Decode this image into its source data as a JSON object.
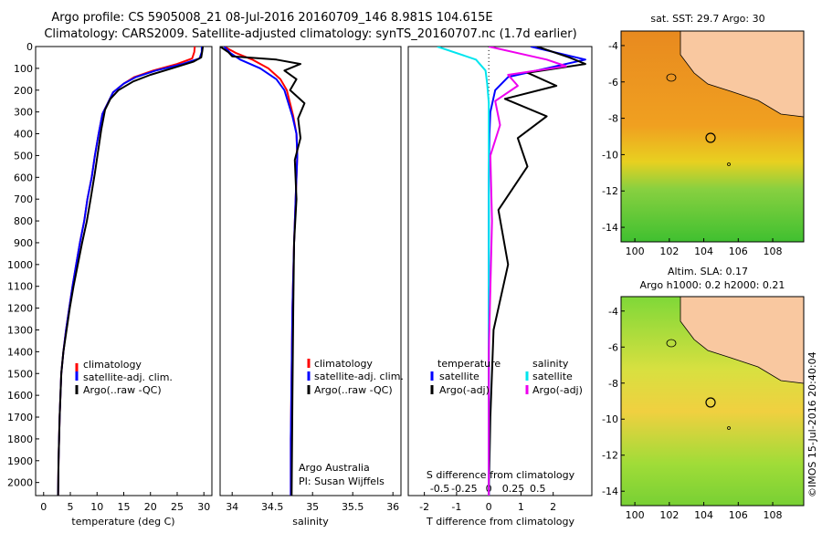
{
  "header": {
    "line1": "Argo profile: CS 5905008_21 08-Jul-2016 20160709_146 8.981S 104.615E",
    "line2": "Climatology: CARS2009. Satellite-adjusted climatology: synTS_20160707.nc (1.7d earlier)"
  },
  "credit": "©IMOS 15-Jul-2016 20:40:04",
  "colors": {
    "climatology": "#ff0000",
    "satellite": "#0000ff",
    "argo": "#000000",
    "cyan": "#00e5ee",
    "magenta": "#ee00ee",
    "land": "#f9c8a0"
  },
  "chart_data": [
    {
      "type": "line",
      "id": "temperature",
      "xlabel": "temperature (deg C)",
      "ylabel": "",
      "xlim": [
        -1.5,
        31.5
      ],
      "ylim": [
        0,
        2060
      ],
      "xticks": [
        0,
        5,
        10,
        15,
        20,
        25,
        30
      ],
      "yticks": [
        0,
        100,
        200,
        300,
        400,
        500,
        600,
        700,
        800,
        900,
        1000,
        1100,
        1200,
        1300,
        1400,
        1500,
        1600,
        1700,
        1800,
        1900,
        2000
      ],
      "legend": [
        "climatology",
        "satellite-adj. clim.",
        "Argo(..raw -QC)"
      ],
      "series": [
        {
          "name": "climatology",
          "color": "#ff0000",
          "x": [
            28.3,
            28.2,
            27.8,
            25,
            20.5,
            17,
            15,
            13,
            12,
            11,
            10.3,
            9.6,
            9,
            8.2,
            7.6,
            6.8,
            6.1,
            5.4,
            4.8,
            4.2,
            3.7,
            3.3,
            3.0,
            2.8,
            2.7
          ],
          "y": [
            0,
            25,
            55,
            80,
            110,
            140,
            170,
            210,
            260,
            310,
            400,
            500,
            600,
            700,
            800,
            900,
            1000,
            1100,
            1200,
            1300,
            1400,
            1500,
            1700,
            1900,
            2060
          ]
        },
        {
          "name": "satellite-adj. clim.",
          "color": "#0000ff",
          "x": [
            29.6,
            29.6,
            29.2,
            26,
            21,
            17.3,
            15,
            13,
            12,
            11,
            10.3,
            9.6,
            9,
            8.2,
            7.6,
            6.8,
            6.1,
            5.4,
            4.8,
            4.2,
            3.7,
            3.3,
            3.0,
            2.8,
            2.7
          ],
          "y": [
            0,
            25,
            55,
            80,
            110,
            140,
            170,
            210,
            260,
            310,
            400,
            500,
            600,
            700,
            800,
            900,
            1000,
            1100,
            1200,
            1300,
            1400,
            1500,
            1700,
            1900,
            2060
          ]
        },
        {
          "name": "Argo(..raw -QC)",
          "color": "#000000",
          "x": [
            29.8,
            29.7,
            29.5,
            28,
            24,
            20,
            16.8,
            14,
            12.5,
            11.5,
            10.8,
            10.2,
            9.6,
            8.8,
            8.1,
            7.2,
            6.4,
            5.6,
            4.9,
            4.3,
            3.7,
            3.3,
            3.0,
            2.8,
            2.7
          ],
          "y": [
            0,
            20,
            50,
            70,
            100,
            130,
            160,
            200,
            240,
            290,
            380,
            480,
            580,
            700,
            800,
            900,
            1000,
            1100,
            1200,
            1300,
            1400,
            1500,
            1700,
            1900,
            2060
          ]
        }
      ]
    },
    {
      "type": "line",
      "id": "salinity",
      "xlabel": "salinity",
      "ylabel": "",
      "xlim": [
        33.85,
        36.1
      ],
      "ylim": [
        0,
        2060
      ],
      "xticks": [
        34,
        34.5,
        35,
        35.5,
        36
      ],
      "legend": [
        "climatology",
        "satellite-adj. clim.",
        "Argo(..raw -QC)"
      ],
      "annotations": [
        "Argo Australia",
        "PI: Susan Wijffels"
      ],
      "series": [
        {
          "name": "climatology",
          "color": "#ff0000",
          "x": [
            33.9,
            34.05,
            34.25,
            34.45,
            34.6,
            34.68,
            34.72,
            34.76,
            34.8,
            34.81,
            34.79,
            34.77,
            34.75,
            34.74,
            34.73,
            34.73
          ],
          "y": [
            0,
            30,
            60,
            100,
            150,
            200,
            260,
            320,
            400,
            500,
            700,
            900,
            1200,
            1500,
            1800,
            2060
          ]
        },
        {
          "name": "satellite-adj. clim.",
          "color": "#0000ff",
          "x": [
            33.9,
            33.98,
            34.1,
            34.35,
            34.55,
            34.65,
            34.7,
            34.75,
            34.8,
            34.81,
            34.79,
            34.77,
            34.75,
            34.74,
            34.73,
            34.73
          ],
          "y": [
            0,
            30,
            60,
            100,
            150,
            200,
            260,
            320,
            400,
            500,
            700,
            900,
            1200,
            1500,
            1800,
            2060
          ]
        },
        {
          "name": "Argo(..raw -QC)",
          "color": "#000000",
          "x": [
            33.85,
            33.95,
            34.0,
            34.55,
            34.85,
            34.65,
            34.8,
            34.72,
            34.9,
            34.82,
            34.85,
            34.78,
            34.8,
            34.77,
            34.76,
            34.75,
            34.74
          ],
          "y": [
            0,
            25,
            45,
            60,
            80,
            110,
            150,
            200,
            260,
            330,
            420,
            520,
            700,
            900,
            1200,
            1600,
            2060
          ]
        }
      ]
    },
    {
      "type": "line",
      "id": "difference",
      "xlabel": "T difference from climatology",
      "x2label": "S difference from climatology",
      "xlim": [
        -2.5,
        3.2
      ],
      "x2ticks": [
        "-0.5",
        "-0.25",
        "0",
        "0.25",
        "0.5"
      ],
      "ylim": [
        0,
        2060
      ],
      "xticks": [
        -2,
        -1,
        0,
        1,
        2
      ],
      "legend": [
        {
          "heading": "temperature",
          "items": [
            "satellite",
            "Argo(-adj)"
          ]
        },
        {
          "heading": "salinity",
          "items": [
            "satellite",
            "Argo(-adj)"
          ]
        }
      ],
      "series": [
        {
          "name": "T satellite",
          "color": "#0000ff",
          "x": [
            1.3,
            3.0,
            1.8,
            0.6,
            0.2,
            0.05,
            0.02,
            0,
            0,
            0,
            0,
            0,
            0
          ],
          "y": [
            0,
            60,
            100,
            140,
            200,
            300,
            400,
            600,
            800,
            1000,
            1400,
            1800,
            2060
          ]
        },
        {
          "name": "T Argo(-adj)",
          "color": "#000000",
          "x": [
            1.5,
            2.5,
            3.0,
            1.2,
            2.1,
            0.5,
            1.8,
            0.9,
            1.2,
            0.3,
            0.6,
            0.15,
            0.05,
            0
          ],
          "y": [
            0,
            50,
            80,
            120,
            180,
            240,
            320,
            420,
            550,
            750,
            1000,
            1300,
            1700,
            2060
          ]
        },
        {
          "name": "S satellite",
          "color": "#00e5ee",
          "x": [
            -1.6,
            -0.4,
            -0.1,
            -0.05,
            0,
            0,
            0,
            0
          ],
          "y": [
            0,
            60,
            110,
            170,
            260,
            500,
            1000,
            2060
          ]
        },
        {
          "name": "S Argo(-adj)",
          "color": "#ee00ee",
          "x": [
            0,
            1.8,
            2.4,
            0.6,
            0.9,
            0.2,
            0.35,
            0.05,
            0.1,
            0,
            0
          ],
          "y": [
            0,
            60,
            90,
            130,
            180,
            250,
            360,
            500,
            800,
            1400,
            2060
          ]
        }
      ]
    }
  ],
  "maps": [
    {
      "title": "sat. SST: 29.7 Argo: 30",
      "xticks": [
        "100",
        "102",
        "104",
        "106",
        "108"
      ],
      "yticks": [
        "-4",
        "-6",
        "-8",
        "-10",
        "-12",
        "-14"
      ]
    },
    {
      "title": "Altim. SLA: 0.17",
      "subtitle": "Argo h1000: 0.2 h2000: 0.21",
      "xticks": [
        "100",
        "102",
        "104",
        "106",
        "108"
      ],
      "yticks": [
        "-4",
        "-6",
        "-8",
        "-10",
        "-12",
        "-14"
      ]
    }
  ]
}
